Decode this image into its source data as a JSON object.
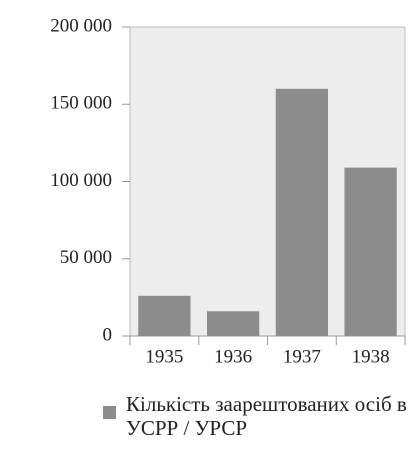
{
  "chart_data": {
    "type": "bar",
    "categories": [
      "1935",
      "1936",
      "1937",
      "1938"
    ],
    "series": [
      {
        "name": "Кількість заарештованих осіб в УСРР / УРСР",
        "color": "#8c8c8c",
        "values": [
          26000,
          16000,
          160000,
          109000
        ]
      }
    ],
    "ylim": [
      0,
      200000
    ],
    "yticks": [
      0,
      {
        "value": 50000,
        "label": "50 000"
      },
      {
        "value": 100000,
        "label": "100 000"
      },
      {
        "value": 150000,
        "label": "150 000"
      },
      {
        "value": 200000,
        "label": "200 000"
      }
    ],
    "legend": "bottom"
  }
}
